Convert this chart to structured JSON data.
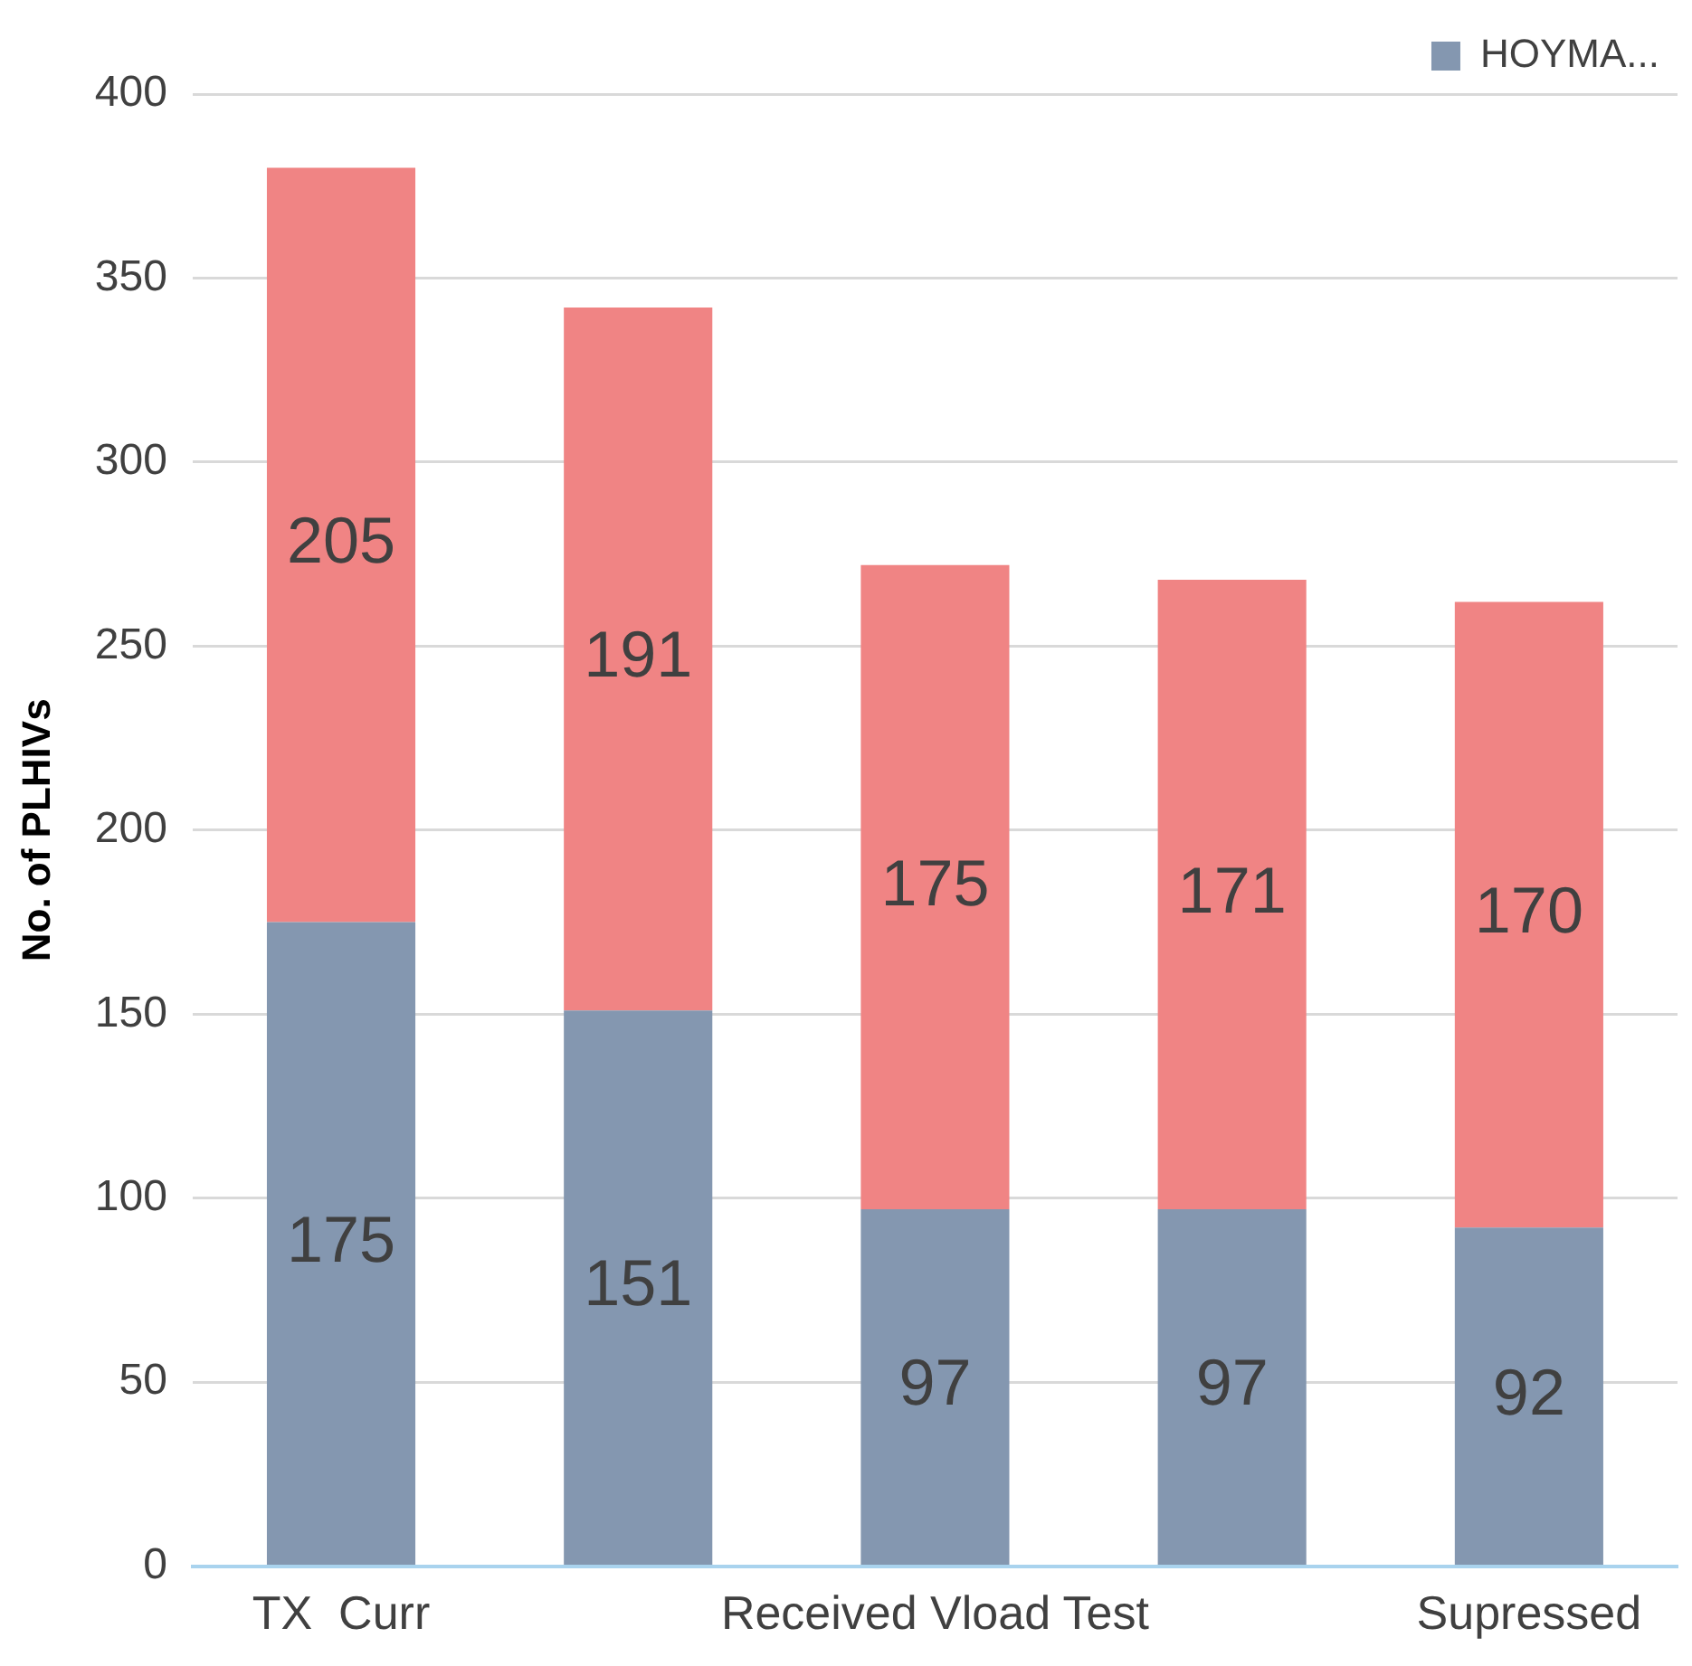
{
  "chart_data": {
    "type": "bar",
    "stacked": true,
    "ylabel": "No. of PLHIVs",
    "categories": [
      "TX  Curr",
      null,
      "Received Vload Test",
      null,
      "Supressed"
    ],
    "series": [
      {
        "name": "HOYMA...",
        "color": "#8497b0",
        "values": [
          175,
          151,
          97,
          97,
          92
        ]
      },
      {
        "color": "#f08484",
        "values": [
          205,
          191,
          175,
          171,
          170
        ]
      }
    ],
    "ylim": [
      0,
      400
    ],
    "yticks": [
      0,
      50,
      100,
      150,
      200,
      250,
      300,
      350,
      400
    ],
    "grid": "y",
    "legend": "top right",
    "data_labels": true
  }
}
